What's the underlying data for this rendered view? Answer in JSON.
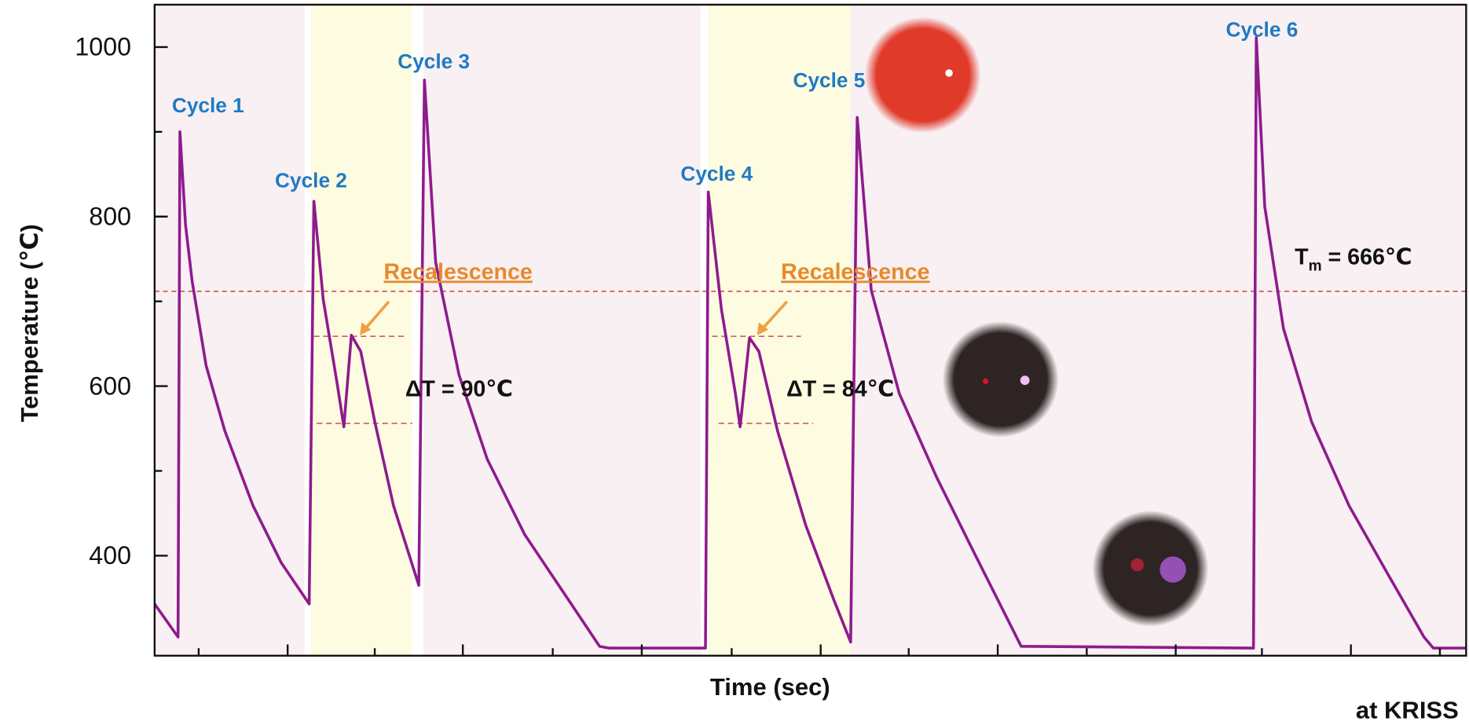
{
  "chart_data": {
    "type": "line",
    "y_label": "Temperature (℃)",
    "x_label": "Time (sec)",
    "ylim": [
      282,
      1050
    ],
    "yticks": [
      400,
      600,
      800,
      1000
    ],
    "minor_yticks": [
      500,
      700,
      900
    ],
    "xlim": [
      0,
      14
    ],
    "series": [
      {
        "color": "#8e1b8e",
        "x": [
          0,
          0.25,
          0.27,
          0.33,
          0.4,
          0.55,
          0.75,
          1.05,
          1.35,
          1.65,
          1.7,
          1.8,
          1.95,
          2.02,
          2.1,
          2.2,
          2.35,
          2.55,
          2.82,
          2.88,
          3.0,
          3.25,
          3.55,
          3.95,
          4.35,
          4.75,
          4.85,
          5.88,
          5.91,
          6.05,
          6.2,
          6.25,
          6.35,
          6.45,
          6.65,
          6.95,
          7.25,
          7.43,
          7.5,
          7.65,
          7.95,
          8.35,
          8.75,
          9.25,
          11.73,
          11.76,
          11.85,
          12.05,
          12.35,
          12.75,
          13.15,
          13.55,
          13.65,
          14
        ],
        "values": [
          343,
          304,
          900,
          790,
          724,
          624,
          547,
          459,
          392,
          343,
          818,
          702,
          602,
          552,
          660,
          641,
          558,
          459,
          365,
          961,
          746,
          613,
          514,
          425,
          359,
          293,
          291,
          291,
          829,
          691,
          591,
          552,
          657,
          641,
          547,
          436,
          348,
          298,
          917,
          713,
          591,
          492,
          403,
          293,
          291,
          1011,
          812,
          668,
          558,
          459,
          381,
          304,
          291,
          291
        ]
      }
    ],
    "annotations": [
      "Cycle 1",
      "Cycle 2",
      "Cycle 3",
      "Cycle 4",
      "Cycle 5",
      "Cycle 6",
      "Recalescence",
      "Recalescence",
      "ΔT = 90℃",
      "ΔT = 84℃"
    ],
    "tm_label": {
      "main": "T",
      "sub": "m",
      "tail": " = 666℃"
    },
    "credit": "at KRISS"
  }
}
